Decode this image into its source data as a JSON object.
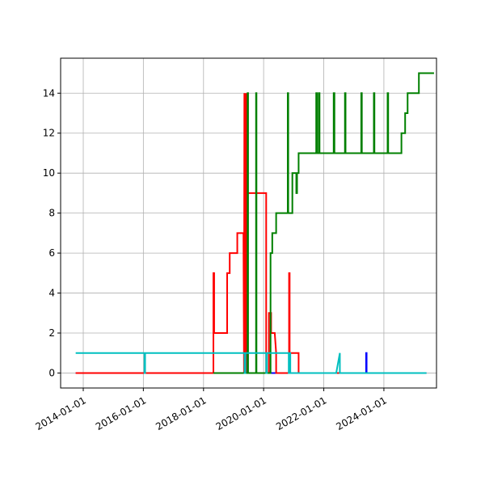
{
  "chart_data": {
    "type": "line",
    "title": "",
    "xlabel": "",
    "ylabel": "",
    "x_axis_type": "date",
    "xlim": [
      "2013-04-01",
      "2025-10-01"
    ],
    "ylim": [
      -0.75,
      15.75
    ],
    "grid": true,
    "legend": "none",
    "x_ticks": [
      "2014-01-01",
      "2016-01-01",
      "2018-01-01",
      "2020-01-01",
      "2022-01-01",
      "2024-01-01"
    ],
    "y_ticks": [
      0,
      2,
      4,
      6,
      8,
      10,
      12,
      14
    ],
    "series": [
      {
        "color": "#0000ff",
        "points": [
          [
            "2013-10-01",
            0
          ],
          [
            "2019-05-01",
            0
          ],
          [
            "2019-10-25",
            0
          ],
          [
            "2020-01-15",
            0
          ],
          [
            "2023-05-30",
            0
          ],
          [
            "2023-05-30",
            1
          ],
          [
            "2023-06-05",
            1
          ],
          [
            "2023-06-05",
            0
          ],
          [
            "2025-06-01",
            0
          ]
        ]
      },
      {
        "color": "#ff0000",
        "points": [
          [
            "2013-10-01",
            0
          ],
          [
            "2018-05-01",
            0
          ],
          [
            "2018-05-01",
            5
          ],
          [
            "2018-05-10",
            5
          ],
          [
            "2018-05-10",
            2
          ],
          [
            "2018-10-15",
            2
          ],
          [
            "2018-10-15",
            5
          ],
          [
            "2018-11-15",
            5
          ],
          [
            "2018-11-15",
            6
          ],
          [
            "2019-02-15",
            6
          ],
          [
            "2019-02-15",
            7
          ],
          [
            "2019-05-01",
            7
          ],
          [
            "2019-05-08",
            0
          ],
          [
            "2019-05-12",
            14
          ],
          [
            "2019-05-16",
            0
          ],
          [
            "2019-05-20",
            14
          ],
          [
            "2019-05-24",
            0
          ],
          [
            "2019-05-28",
            14
          ],
          [
            "2019-06-02",
            0
          ],
          [
            "2019-06-06",
            14
          ],
          [
            "2019-06-10",
            0
          ],
          [
            "2019-06-14",
            8
          ],
          [
            "2019-06-20",
            8
          ],
          [
            "2019-06-20",
            9
          ],
          [
            "2020-02-01",
            9
          ],
          [
            "2020-02-01",
            0
          ],
          [
            "2020-03-05",
            0
          ],
          [
            "2020-03-05",
            3
          ],
          [
            "2020-04-01",
            3
          ],
          [
            "2020-04-01",
            2
          ],
          [
            "2020-05-15",
            2
          ],
          [
            "2020-06-01",
            1
          ],
          [
            "2020-06-01",
            0
          ],
          [
            "2020-11-05",
            0
          ],
          [
            "2020-11-05",
            5
          ],
          [
            "2020-11-12",
            5
          ],
          [
            "2020-11-12",
            1
          ],
          [
            "2021-03-01",
            1
          ],
          [
            "2021-03-01",
            0
          ],
          [
            "2022-10-15",
            0
          ],
          [
            "2022-11-15",
            0
          ]
        ]
      },
      {
        "color": "#008000",
        "points": [
          [
            "2018-05-01",
            0
          ],
          [
            "2019-06-20",
            0
          ],
          [
            "2019-06-20",
            14
          ],
          [
            "2019-06-26",
            14
          ],
          [
            "2019-06-26",
            0
          ],
          [
            "2019-10-01",
            0
          ],
          [
            "2019-10-01",
            14
          ],
          [
            "2019-10-06",
            14
          ],
          [
            "2019-10-06",
            0
          ],
          [
            "2020-03-25",
            0
          ],
          [
            "2020-03-25",
            6
          ],
          [
            "2020-04-15",
            6
          ],
          [
            "2020-04-15",
            7
          ],
          [
            "2020-06-01",
            7
          ],
          [
            "2020-06-01",
            8
          ],
          [
            "2020-10-20",
            8
          ],
          [
            "2020-10-20",
            14
          ],
          [
            "2020-10-26",
            14
          ],
          [
            "2020-10-26",
            8
          ],
          [
            "2020-12-15",
            8
          ],
          [
            "2020-12-15",
            10
          ],
          [
            "2021-02-01",
            10
          ],
          [
            "2021-02-01",
            9
          ],
          [
            "2021-02-10",
            9
          ],
          [
            "2021-02-10",
            10
          ],
          [
            "2021-03-01",
            10
          ],
          [
            "2021-03-01",
            11
          ],
          [
            "2021-10-01",
            11
          ],
          [
            "2021-10-01",
            14
          ],
          [
            "2021-10-10",
            14
          ],
          [
            "2021-10-10",
            11
          ],
          [
            "2021-11-01",
            11
          ],
          [
            "2021-11-01",
            14
          ],
          [
            "2021-11-10",
            14
          ],
          [
            "2021-11-10",
            11
          ],
          [
            "2022-05-01",
            11
          ],
          [
            "2022-05-01",
            14
          ],
          [
            "2022-05-10",
            14
          ],
          [
            "2022-05-10",
            11
          ],
          [
            "2022-09-15",
            11
          ],
          [
            "2022-09-15",
            14
          ],
          [
            "2022-09-22",
            14
          ],
          [
            "2022-09-22",
            11
          ],
          [
            "2023-04-01",
            11
          ],
          [
            "2023-04-01",
            14
          ],
          [
            "2023-04-08",
            14
          ],
          [
            "2023-04-08",
            11
          ],
          [
            "2023-09-01",
            11
          ],
          [
            "2023-09-01",
            14
          ],
          [
            "2023-09-08",
            14
          ],
          [
            "2023-09-08",
            11
          ],
          [
            "2024-02-15",
            11
          ],
          [
            "2024-02-15",
            14
          ],
          [
            "2024-02-22",
            14
          ],
          [
            "2024-02-22",
            11
          ],
          [
            "2024-08-01",
            11
          ],
          [
            "2024-08-01",
            12
          ],
          [
            "2024-09-15",
            12
          ],
          [
            "2024-09-15",
            13
          ],
          [
            "2024-10-15",
            13
          ],
          [
            "2024-10-15",
            14
          ],
          [
            "2025-03-01",
            14
          ],
          [
            "2025-03-01",
            15
          ],
          [
            "2025-06-01",
            15
          ],
          [
            "2025-06-15",
            15
          ],
          [
            "2025-07-01",
            15
          ],
          [
            "2025-08-01",
            15
          ],
          [
            "2025-09-01",
            15
          ]
        ]
      },
      {
        "color": "#00bfbf",
        "points": [
          [
            "2013-10-01",
            1
          ],
          [
            "2016-01-15",
            1
          ],
          [
            "2016-01-15",
            0
          ],
          [
            "2016-01-22",
            0
          ],
          [
            "2016-01-22",
            1
          ],
          [
            "2019-05-15",
            1
          ],
          [
            "2019-05-15",
            0
          ],
          [
            "2019-05-25",
            0
          ],
          [
            "2019-05-25",
            1
          ],
          [
            "2020-02-01",
            1
          ],
          [
            "2020-02-01",
            0
          ],
          [
            "2020-02-10",
            0
          ],
          [
            "2020-02-10",
            1
          ],
          [
            "2020-11-01",
            1
          ],
          [
            "2020-11-01",
            0
          ],
          [
            "2020-11-10",
            0
          ],
          [
            "2020-11-10",
            1
          ],
          [
            "2020-11-20",
            1
          ],
          [
            "2020-11-20",
            0
          ],
          [
            "2022-06-01",
            0
          ],
          [
            "2022-07-15",
            1
          ],
          [
            "2022-07-15",
            0
          ],
          [
            "2025-06-01",
            0
          ]
        ]
      }
    ]
  }
}
